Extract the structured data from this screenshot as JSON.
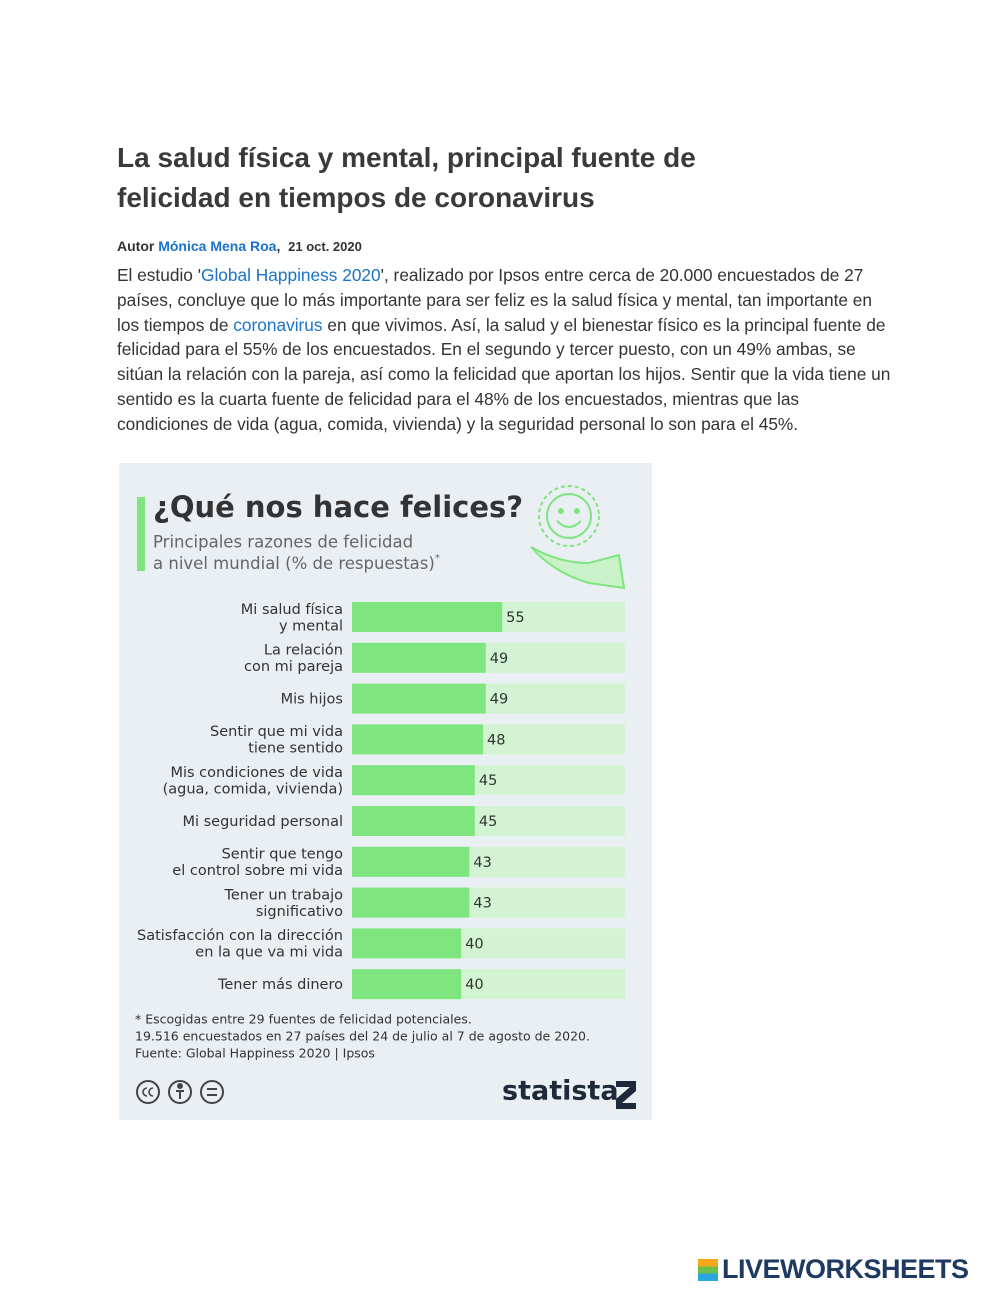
{
  "article": {
    "title": [
      "La salud física y mental, principal fuente de",
      "felicidad en tiempos de coronavirus"
    ],
    "byline": [
      "Autor",
      "Mónica Mena Roa",
      ",",
      "21 oct. 2020"
    ],
    "body": [
      "El estudio '",
      "Global Happiness 2020",
      "', realizado por Ipsos entre cerca de 20.000 encuestados de 27 países, concluye que lo más importante para ser feliz es la salud física y mental, tan importante en los tiempos de ",
      "coronavirus",
      " en que vivimos. Así, la salud y el bienestar físico es la principal fuente de felicidad para el 55% de los encuestados. En el segundo y tercer puesto, con un 49% ambas, se sitúan la relación con la pareja, así como la felicidad que aportan los hijos. Sentir que la vida tiene un sentido es la cuarta fuente de felicidad para el 48% de los encuestados, mientras que las condiciones de vida (agua, comida, vivienda) y la seguridad personal lo son para el 45%."
    ]
  },
  "chart_data": {
    "type": "bar",
    "orientation": "horizontal",
    "title": "¿Qué nos hace felices?",
    "subtitle": [
      "Principales razones de felicidad",
      "a nivel mundial (% de respuestas)"
    ],
    "subtitle_mark": "*",
    "categories": [
      [
        "Mi salud física",
        "y mental"
      ],
      [
        "La relación",
        "con mi pareja"
      ],
      [
        "Mis hijos"
      ],
      [
        "Sentir que mi vida",
        "tiene sentido"
      ],
      [
        "Mis condiciones de vida",
        "(agua, comida, vivienda)"
      ],
      [
        "Mi seguridad personal"
      ],
      [
        "Sentir que tengo",
        "el control sobre mi vida"
      ],
      [
        "Tener un trabajo",
        "significativo"
      ],
      [
        "Satisfacción con la dirección",
        "en la que va mi vida"
      ],
      [
        "Tener más dinero"
      ]
    ],
    "values": [
      55,
      49,
      49,
      48,
      45,
      45,
      43,
      43,
      40,
      40
    ],
    "color": "#7fe57f",
    "track_color": "#d2f4d2",
    "xlim": [
      0,
      100
    ],
    "notes": [
      "* Escogidas entre 29 fuentes de felicidad potenciales.",
      "19.516 encuestados en 27 países del 24 de julio al 7 de agosto de 2020.",
      "Fuente: Global Happiness 2020 | Ipsos"
    ],
    "brand": "statista"
  },
  "footer": {
    "brand": "LIVEWORKSHEETS"
  }
}
